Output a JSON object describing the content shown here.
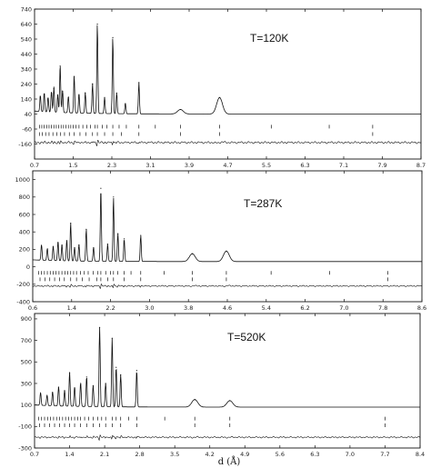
{
  "chart_data": [
    {
      "type": "line",
      "title": "",
      "annotation": "T=120K",
      "xlabel": "",
      "ylabel": "",
      "xlim": [
        0.7,
        8.7
      ],
      "ylim": [
        -260,
        740
      ],
      "x_ticks": [
        "0.7",
        "1.5",
        "2.3",
        "3.1",
        "3.9",
        "4.7",
        "5.5",
        "6.3",
        "7.1",
        "7.9",
        "8.7"
      ],
      "y_ticks": [
        "740",
        "640",
        "540",
        "440",
        "340",
        "240",
        "140",
        "40",
        "-60",
        "-160"
      ],
      "baseline": 40,
      "difference_offset": -150,
      "peaks": [
        {
          "x": 0.82,
          "y": 150
        },
        {
          "x": 0.9,
          "y": 170
        },
        {
          "x": 0.98,
          "y": 140
        },
        {
          "x": 1.05,
          "y": 180
        },
        {
          "x": 1.1,
          "y": 210
        },
        {
          "x": 1.18,
          "y": 160
        },
        {
          "x": 1.23,
          "y": 360
        },
        {
          "x": 1.28,
          "y": 190
        },
        {
          "x": 1.4,
          "y": 150
        },
        {
          "x": 1.52,
          "y": 290
        },
        {
          "x": 1.62,
          "y": 170
        },
        {
          "x": 1.75,
          "y": 180
        },
        {
          "x": 1.9,
          "y": 240
        },
        {
          "x": 2.0,
          "y": 640
        },
        {
          "x": 2.15,
          "y": 150
        },
        {
          "x": 2.32,
          "y": 550
        },
        {
          "x": 2.4,
          "y": 180
        },
        {
          "x": 2.58,
          "y": 110
        },
        {
          "x": 2.86,
          "y": 250
        },
        {
          "x": 3.72,
          "y": 70
        },
        {
          "x": 4.53,
          "y": 150
        }
      ],
      "reflections_phase1": [
        0.8,
        0.85,
        0.9,
        0.95,
        1.0,
        1.05,
        1.1,
        1.15,
        1.2,
        1.25,
        1.3,
        1.35,
        1.4,
        1.45,
        1.5,
        1.56,
        1.62,
        1.7,
        1.78,
        1.86,
        1.95,
        2.0,
        2.1,
        2.2,
        2.32,
        2.45,
        2.6,
        2.86,
        3.2,
        3.72,
        4.53,
        5.6,
        6.8,
        7.7
      ],
      "reflections_phase2": [
        0.8,
        0.86,
        0.93,
        1.0,
        1.08,
        1.16,
        1.24,
        1.32,
        1.42,
        1.52,
        1.64,
        1.76,
        1.9,
        2.0,
        2.15,
        2.32,
        2.5,
        2.86,
        3.72,
        4.53,
        7.7
      ]
    },
    {
      "type": "line",
      "title": "",
      "annotation": "T=287K",
      "xlabel": "",
      "ylabel": "",
      "xlim": [
        0.6,
        8.6
      ],
      "ylim": [
        -400,
        1100
      ],
      "x_ticks": [
        "0.6",
        "1.4",
        "2.2",
        "3.0",
        "3.8",
        "4.6",
        "5.4",
        "6.2",
        "7.0",
        "7.8",
        "8.6"
      ],
      "y_ticks": [
        "1000",
        "800",
        "600",
        "400",
        "200",
        "0",
        "-200",
        "-400"
      ],
      "baseline": 60,
      "difference_offset": -220,
      "peaks": [
        {
          "x": 0.78,
          "y": 240
        },
        {
          "x": 0.9,
          "y": 200
        },
        {
          "x": 1.02,
          "y": 230
        },
        {
          "x": 1.12,
          "y": 280
        },
        {
          "x": 1.2,
          "y": 250
        },
        {
          "x": 1.3,
          "y": 300
        },
        {
          "x": 1.38,
          "y": 500
        },
        {
          "x": 1.46,
          "y": 220
        },
        {
          "x": 1.55,
          "y": 250
        },
        {
          "x": 1.7,
          "y": 430
        },
        {
          "x": 1.85,
          "y": 220
        },
        {
          "x": 2.0,
          "y": 900
        },
        {
          "x": 2.14,
          "y": 260
        },
        {
          "x": 2.26,
          "y": 800
        },
        {
          "x": 2.35,
          "y": 380
        },
        {
          "x": 2.48,
          "y": 320
        },
        {
          "x": 2.82,
          "y": 360
        },
        {
          "x": 3.88,
          "y": 150
        },
        {
          "x": 4.58,
          "y": 180
        }
      ],
      "reflections_phase1": [
        0.72,
        0.78,
        0.84,
        0.9,
        0.96,
        1.02,
        1.08,
        1.14,
        1.2,
        1.26,
        1.32,
        1.38,
        1.44,
        1.5,
        1.58,
        1.66,
        1.74,
        1.84,
        1.94,
        2.0,
        2.1,
        2.2,
        2.26,
        2.35,
        2.48,
        2.62,
        2.82,
        3.3,
        3.88,
        4.58,
        5.5,
        6.7,
        7.9
      ],
      "reflections_phase2": [
        0.75,
        0.85,
        0.95,
        1.05,
        1.15,
        1.25,
        1.38,
        1.5,
        1.62,
        1.76,
        1.92,
        2.0,
        2.14,
        2.26,
        2.48,
        2.82,
        3.88,
        4.58,
        7.9
      ]
    },
    {
      "type": "line",
      "title": "",
      "annotation": "T=520K",
      "xlabel": "d (Å)",
      "ylabel": "",
      "xlim": [
        0.7,
        8.4
      ],
      "ylim": [
        -300,
        950
      ],
      "x_ticks": [
        "0.7",
        "1.4",
        "2.1",
        "2.8",
        "3.5",
        "4.2",
        "4.9",
        "5.6",
        "6.3",
        "7.0",
        "7.7",
        "8.4"
      ],
      "y_ticks": [
        "900",
        "700",
        "500",
        "300",
        "100",
        "-100",
        "-300"
      ],
      "baseline": 80,
      "difference_offset": -200,
      "peaks": [
        {
          "x": 0.82,
          "y": 200
        },
        {
          "x": 0.95,
          "y": 180
        },
        {
          "x": 1.06,
          "y": 210
        },
        {
          "x": 1.18,
          "y": 260
        },
        {
          "x": 1.3,
          "y": 230
        },
        {
          "x": 1.4,
          "y": 400
        },
        {
          "x": 1.5,
          "y": 260
        },
        {
          "x": 1.62,
          "y": 300
        },
        {
          "x": 1.74,
          "y": 360
        },
        {
          "x": 1.87,
          "y": 280
        },
        {
          "x": 2.0,
          "y": 820
        },
        {
          "x": 2.12,
          "y": 300
        },
        {
          "x": 2.25,
          "y": 720
        },
        {
          "x": 2.33,
          "y": 450
        },
        {
          "x": 2.42,
          "y": 380
        },
        {
          "x": 2.74,
          "y": 420
        },
        {
          "x": 3.9,
          "y": 150
        },
        {
          "x": 4.6,
          "y": 140
        }
      ],
      "reflections_phase1": [
        0.78,
        0.84,
        0.9,
        0.96,
        1.02,
        1.08,
        1.14,
        1.2,
        1.26,
        1.32,
        1.38,
        1.44,
        1.5,
        1.56,
        1.62,
        1.7,
        1.78,
        1.87,
        1.96,
        2.04,
        2.12,
        2.25,
        2.33,
        2.42,
        2.58,
        2.74,
        3.3,
        3.9,
        4.6,
        7.7
      ],
      "reflections_phase2": [
        0.8,
        0.9,
        1.0,
        1.1,
        1.2,
        1.3,
        1.4,
        1.5,
        1.62,
        1.74,
        1.87,
        2.0,
        2.12,
        2.25,
        2.42,
        2.74,
        3.9,
        4.6,
        7.7
      ]
    }
  ]
}
